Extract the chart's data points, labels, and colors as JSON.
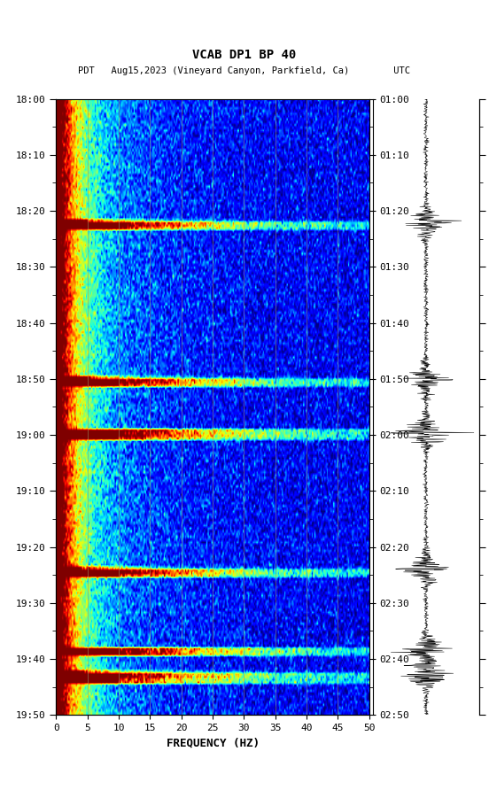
{
  "title_line1": "VCAB DP1 BP 40",
  "title_line2": "PDT   Aug15,2023 (Vineyard Canyon, Parkfield, Ca)        UTC",
  "xlabel": "FREQUENCY (HZ)",
  "freq_min": 0,
  "freq_max": 50,
  "freq_ticks": [
    0,
    5,
    10,
    15,
    20,
    25,
    30,
    35,
    40,
    45,
    50
  ],
  "left_time_labels": [
    "18:00",
    "18:10",
    "18:20",
    "18:30",
    "18:40",
    "18:50",
    "19:00",
    "19:10",
    "19:20",
    "19:30",
    "19:40",
    "19:50"
  ],
  "right_time_labels": [
    "01:00",
    "01:10",
    "01:20",
    "01:30",
    "01:40",
    "01:50",
    "02:00",
    "02:10",
    "02:20",
    "02:30",
    "02:40",
    "02:50"
  ],
  "background_color": "#ffffff",
  "logo_color": "#006633",
  "vertical_grid_freqs": [
    5,
    10,
    15,
    20,
    25,
    30,
    35,
    40,
    45
  ],
  "colormap": "jet",
  "vmin": -1.5,
  "vmax": 3.5,
  "seed": 42,
  "n_time": 220,
  "n_freq": 250,
  "waveform_color": "#000000",
  "fig_width": 5.52,
  "fig_height": 8.92,
  "fig_dpi": 100,
  "event_rows": [
    44,
    45,
    46,
    100,
    101,
    102,
    118,
    119,
    120,
    121,
    168,
    169,
    170,
    196,
    197,
    198,
    205,
    206,
    207,
    208
  ],
  "seismic_bursts": [
    44,
    100,
    119,
    168,
    197,
    205
  ],
  "grid_color": "#999966",
  "grid_alpha": 0.6,
  "grid_lw": 0.6
}
